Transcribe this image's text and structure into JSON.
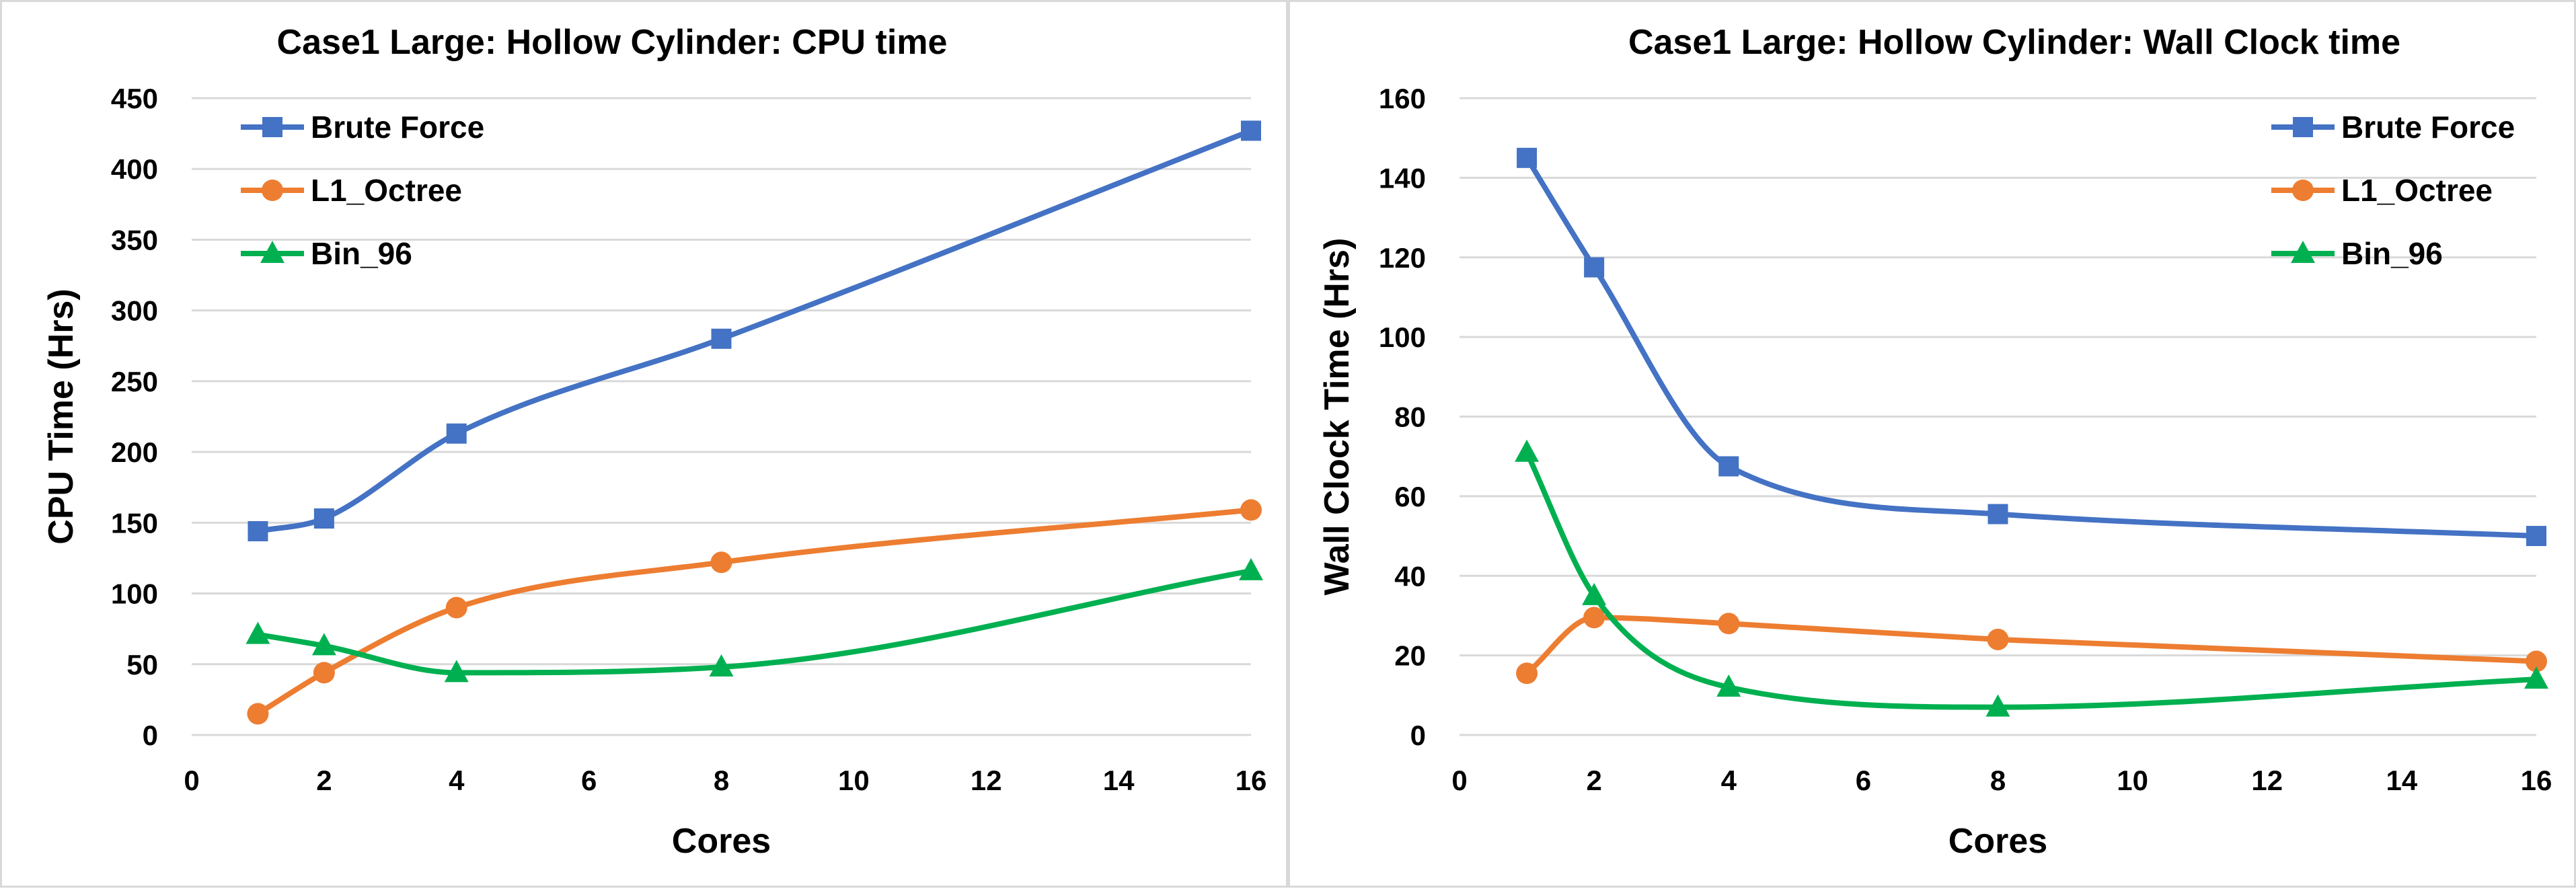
{
  "chart_data": [
    {
      "type": "line",
      "title": "Case1 Large: Hollow Cylinder: CPU time",
      "xlabel": "Cores",
      "ylabel": "CPU Time (Hrs)",
      "xlim": [
        0,
        16
      ],
      "ylim": [
        0,
        450
      ],
      "xticks": [
        0,
        2,
        4,
        6,
        8,
        10,
        12,
        14,
        16
      ],
      "yticks": [
        0,
        50,
        100,
        150,
        200,
        250,
        300,
        350,
        400,
        450
      ],
      "grid": "horizontal",
      "legend_position": "top-left",
      "series": [
        {
          "name": "Brute Force",
          "color": "#4472c4",
          "marker": "square",
          "x": [
            1,
            2,
            4,
            8,
            16
          ],
          "y": [
            144,
            153,
            213,
            280,
            427
          ]
        },
        {
          "name": "L1_Octree",
          "color": "#ed7d31",
          "marker": "circle",
          "x": [
            1,
            2,
            4,
            8,
            16
          ],
          "y": [
            15,
            44,
            90,
            122,
            159
          ]
        },
        {
          "name": "Bin_96",
          "color": "#00b050",
          "marker": "triangle",
          "x": [
            1,
            2,
            4,
            8,
            16
          ],
          "y": [
            71,
            63,
            44,
            48,
            116
          ]
        }
      ]
    },
    {
      "type": "line",
      "title": "Case1 Large: Hollow Cylinder: Wall Clock time",
      "xlabel": "Cores",
      "ylabel": "Wall Clock Time (Hrs)",
      "xlim": [
        0,
        16
      ],
      "ylim": [
        0,
        160
      ],
      "xticks": [
        0,
        2,
        4,
        6,
        8,
        10,
        12,
        14,
        16
      ],
      "yticks": [
        0,
        20,
        40,
        60,
        80,
        100,
        120,
        140,
        160
      ],
      "grid": "horizontal",
      "legend_position": "top-right",
      "series": [
        {
          "name": "Brute Force",
          "color": "#4472c4",
          "marker": "square",
          "x": [
            1,
            2,
            4,
            8,
            16
          ],
          "y": [
            145,
            117.5,
            67.5,
            55.5,
            50
          ]
        },
        {
          "name": "L1_Octree",
          "color": "#ed7d31",
          "marker": "circle",
          "x": [
            1,
            2,
            4,
            8,
            16
          ],
          "y": [
            15.5,
            29.5,
            28,
            24,
            18.5
          ]
        },
        {
          "name": "Bin_96",
          "color": "#00b050",
          "marker": "triangle",
          "x": [
            1,
            2,
            4,
            8,
            16
          ],
          "y": [
            71,
            35,
            12,
            7,
            14
          ]
        }
      ]
    }
  ]
}
